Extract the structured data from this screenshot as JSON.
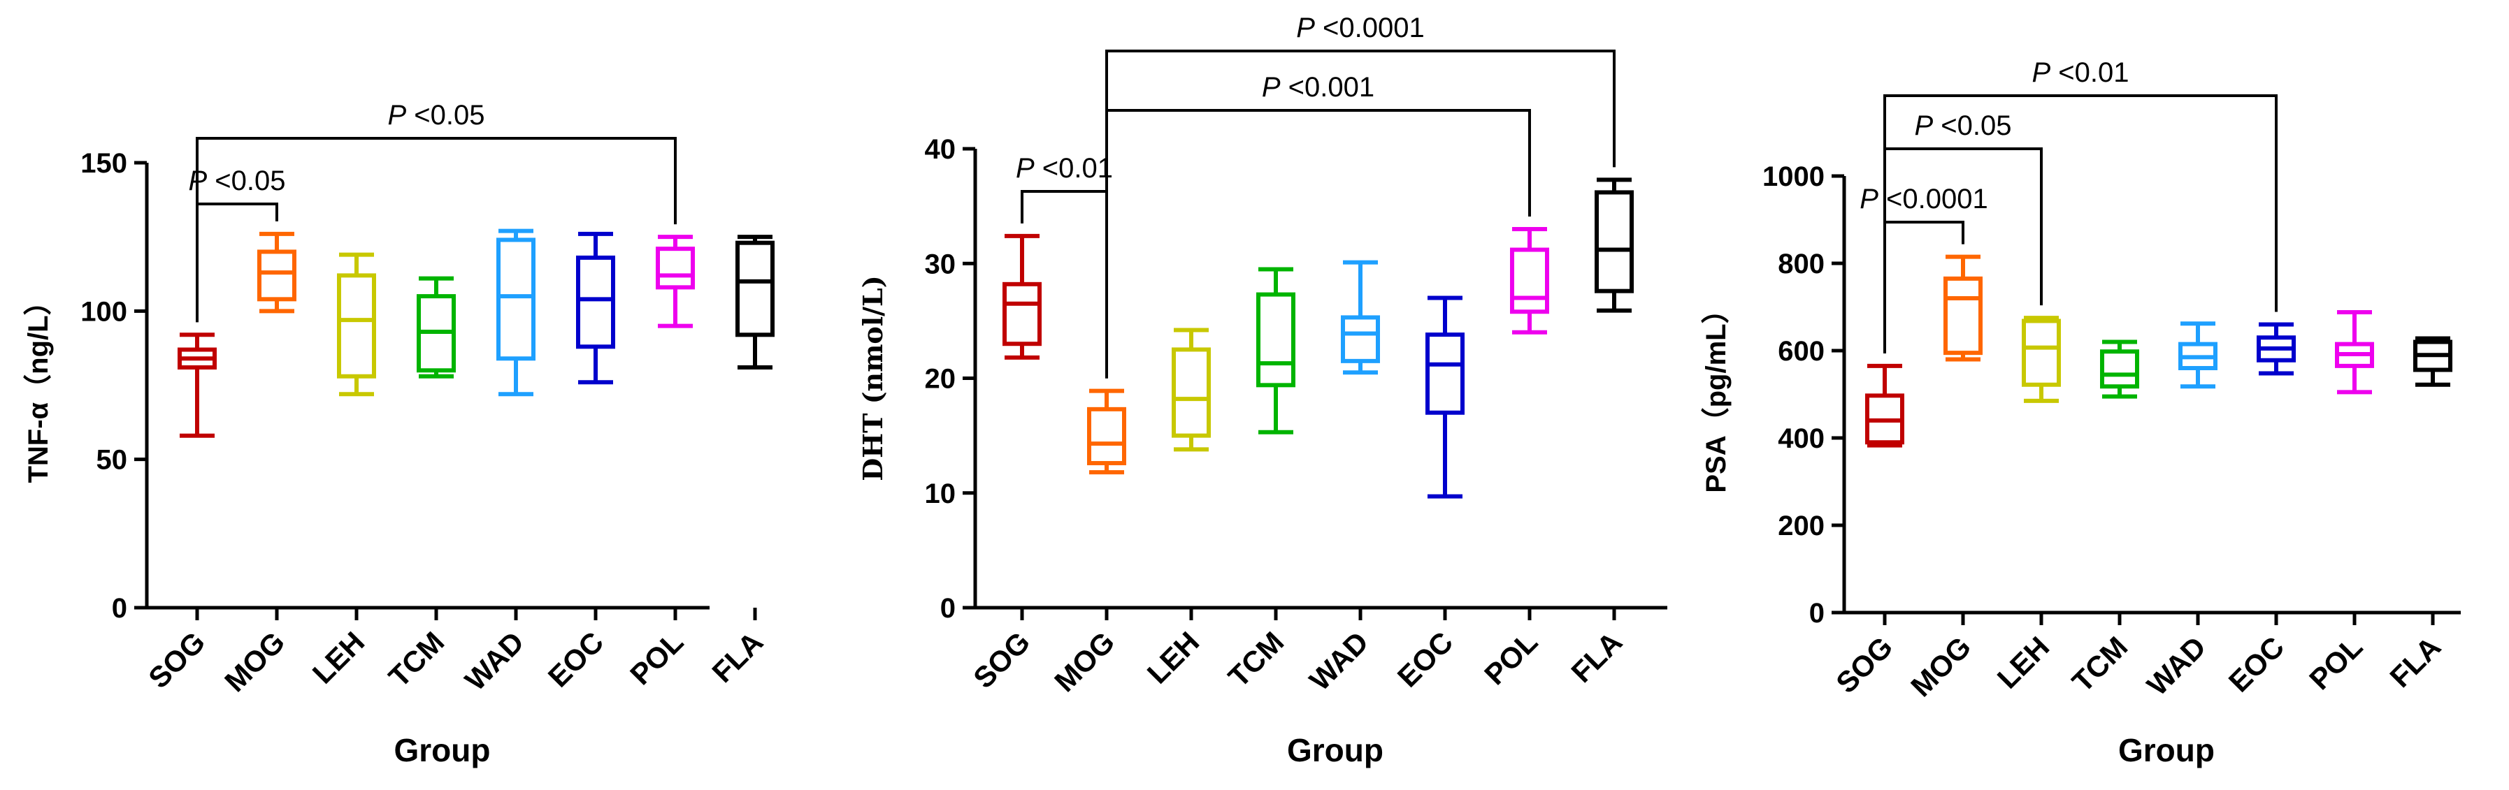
{
  "chart_data": [
    {
      "type": "boxplot",
      "ylabel": "TNF-α（ng/L）",
      "xlabel": "Group",
      "ylim": [
        0,
        150
      ],
      "yticks": [
        0,
        50,
        100,
        150
      ],
      "categories": [
        "SOG",
        "MOG",
        "LEH",
        "TCM",
        "WAD",
        "EOC",
        "POL",
        "FLA"
      ],
      "colors": [
        "#c00000",
        "#ff6600",
        "#c8c800",
        "#00b400",
        "#1ea0ff",
        "#0000cc",
        "#ee00ee",
        "#000000"
      ],
      "boxes": [
        {
          "min": 58,
          "q1": 81,
          "median": 84,
          "q3": 87,
          "max": 92
        },
        {
          "min": 100,
          "q1": 104,
          "median": 113,
          "q3": 120,
          "max": 126
        },
        {
          "min": 72,
          "q1": 78,
          "median": 97,
          "q3": 112,
          "max": 119
        },
        {
          "min": 78,
          "q1": 80,
          "median": 93,
          "q3": 105,
          "max": 111
        },
        {
          "min": 72,
          "q1": 84,
          "median": 105,
          "q3": 124,
          "max": 127
        },
        {
          "min": 76,
          "q1": 88,
          "median": 104,
          "q3": 118,
          "max": 126
        },
        {
          "min": 95,
          "q1": 108,
          "median": 112,
          "q3": 121,
          "max": 125
        },
        {
          "min": 81,
          "q1": 92,
          "median": 110,
          "q3": 123,
          "max": 125
        }
      ],
      "significance": [
        {
          "from": "SOG",
          "to": "MOG",
          "label": "P <0.05",
          "level": 0
        },
        {
          "from": "SOG",
          "to": "POL",
          "label": "P <0.05",
          "level": 1
        }
      ]
    },
    {
      "type": "boxplot",
      "ylabel": "DHT (nmol/L)",
      "xlabel": "Group",
      "ylim": [
        0,
        40
      ],
      "yticks": [
        0,
        10,
        20,
        30,
        40
      ],
      "categories": [
        "SOG",
        "MOG",
        "LEH",
        "TCM",
        "WAD",
        "EOC",
        "POL",
        "FLA"
      ],
      "colors": [
        "#c00000",
        "#ff6600",
        "#c8c800",
        "#00b400",
        "#1ea0ff",
        "#0000cc",
        "#ee00ee",
        "#000000"
      ],
      "boxes": [
        {
          "min": 21.8,
          "q1": 23,
          "median": 26.5,
          "q3": 28.2,
          "max": 32.4
        },
        {
          "min": 11.8,
          "q1": 12.6,
          "median": 14.3,
          "q3": 17.3,
          "max": 18.9
        },
        {
          "min": 13.8,
          "q1": 15,
          "median": 18.2,
          "q3": 22.5,
          "max": 24.2
        },
        {
          "min": 15.3,
          "q1": 19.4,
          "median": 21.3,
          "q3": 27.3,
          "max": 29.5
        },
        {
          "min": 20.5,
          "q1": 21.5,
          "median": 23.9,
          "q3": 25.3,
          "max": 30.1
        },
        {
          "min": 9.7,
          "q1": 17,
          "median": 21.2,
          "q3": 23.8,
          "max": 27
        },
        {
          "min": 24,
          "q1": 25.8,
          "median": 27,
          "q3": 31.2,
          "max": 33
        },
        {
          "min": 25.9,
          "q1": 27.6,
          "median": 31.2,
          "q3": 36.2,
          "max": 37.3
        }
      ],
      "significance": [
        {
          "from": "SOG",
          "to": "MOG",
          "label": "P <0.01",
          "level": 0
        },
        {
          "from": "MOG",
          "to": "POL",
          "label": "P <0.001",
          "level": 1
        },
        {
          "from": "MOG",
          "to": "FLA",
          "label": "P <0.0001",
          "level": 2
        }
      ]
    },
    {
      "type": "boxplot",
      "ylabel": "PSA（pg/mL）",
      "xlabel": "Group",
      "ylim": [
        0,
        1000
      ],
      "yticks": [
        0,
        200,
        400,
        600,
        800,
        1000
      ],
      "categories": [
        "SOG",
        "MOG",
        "LEH",
        "TCM",
        "WAD",
        "EOC",
        "POL",
        "FLA"
      ],
      "colors": [
        "#c00000",
        "#ff6600",
        "#c8c800",
        "#00b400",
        "#1ea0ff",
        "#0000cc",
        "#ee00ee",
        "#000000"
      ],
      "boxes": [
        {
          "min": 383,
          "q1": 390,
          "median": 440,
          "q3": 497,
          "max": 565
        },
        {
          "min": 580,
          "q1": 595,
          "median": 720,
          "q3": 765,
          "max": 815
        },
        {
          "min": 485,
          "q1": 522,
          "median": 607,
          "q3": 668,
          "max": 675
        },
        {
          "min": 495,
          "q1": 518,
          "median": 545,
          "q3": 598,
          "max": 620
        },
        {
          "min": 518,
          "q1": 560,
          "median": 585,
          "q3": 615,
          "max": 662
        },
        {
          "min": 548,
          "q1": 578,
          "median": 605,
          "q3": 630,
          "max": 660
        },
        {
          "min": 505,
          "q1": 565,
          "median": 592,
          "q3": 615,
          "max": 688
        },
        {
          "min": 522,
          "q1": 556,
          "median": 590,
          "q3": 620,
          "max": 628
        }
      ],
      "significance": [
        {
          "from": "SOG",
          "to": "MOG",
          "label": "P <0.0001",
          "level": 0
        },
        {
          "from": "SOG",
          "to": "LEH",
          "label": "P <0.05",
          "level": 1
        },
        {
          "from": "SOG",
          "to": "EOC",
          "label": "P <0.01",
          "level": 2
        }
      ]
    }
  ]
}
